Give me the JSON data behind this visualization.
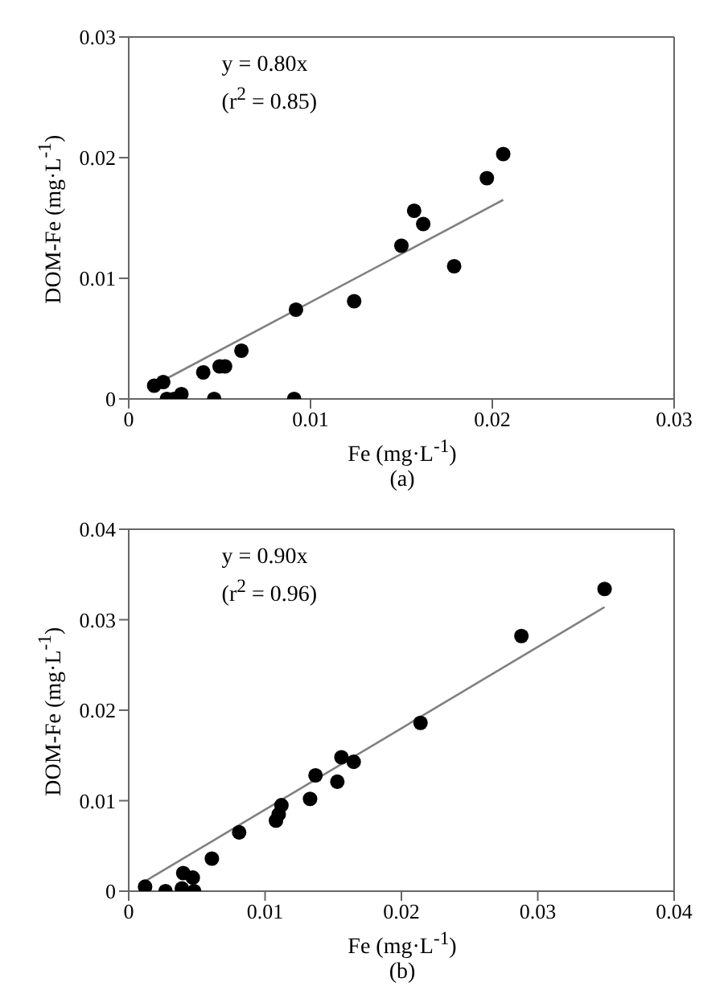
{
  "chart_data": [
    {
      "type": "scatter",
      "xlabel": "Fe (mg·L$^{-1}$)",
      "ylabel": "DOM-Fe (mg·L$^{-1}$)",
      "annotations": [
        "y = 0.80x",
        "(r$^{2}$ = 0.85)",
        "(a)"
      ],
      "xlim": [
        0,
        0.03
      ],
      "xticks": [
        0,
        0.01,
        0.02,
        0.03
      ],
      "ylim": [
        0,
        0.03
      ],
      "yticks": [
        0,
        0.01,
        0.02,
        0.03
      ],
      "marker": "circle",
      "series": [
        {
          "color": "#000000",
          "x": [
            0.0014,
            0.0019,
            0.0021,
            0.0025,
            0.0029,
            0.0041,
            0.0047,
            0.005,
            0.0053,
            0.0062,
            0.0091,
            0.0092,
            0.0124,
            0.015,
            0.0157,
            0.0162,
            0.0179,
            0.0197,
            0.0206
          ],
          "values": [
            0.0011,
            0.0014,
            0,
            0,
            0.0004,
            0.0022,
            0,
            0.0027,
            0.0027,
            0.004,
            0,
            0.0074,
            0.0081,
            0.0127,
            0.0156,
            0.0145,
            0.011,
            0.0183,
            0.0203
          ]
        },
        {
          "type": "line",
          "marker": "none",
          "color": "#808080",
          "line_style": "solid",
          "x": [
            0.0016,
            0.0206
          ],
          "values": [
            0.0013,
            0.0165
          ]
        }
      ]
    },
    {
      "type": "scatter",
      "xlabel": "Fe (mg·L$^{-1}$)",
      "ylabel": "DOM-Fe (mg·L$^{-1}$)",
      "annotations": [
        "y = 0.90x",
        "(r$^{2}$ = 0.96)",
        "(b)"
      ],
      "xlim": [
        0,
        0.04
      ],
      "xticks": [
        0,
        0.01,
        0.02,
        0.03,
        0.04
      ],
      "ylim": [
        0,
        0.04
      ],
      "yticks": [
        0,
        0.01,
        0.02,
        0.03,
        0.04
      ],
      "marker": "circle",
      "series": [
        {
          "color": "#000000",
          "x": [
            0.0012,
            0.0027,
            0.0039,
            0.004,
            0.0047,
            0.0048,
            0.0061,
            0.0081,
            0.0108,
            0.011,
            0.0112,
            0.0133,
            0.0137,
            0.0153,
            0.0156,
            0.0165,
            0.0214,
            0.0288,
            0.0349
          ],
          "values": [
            0.0005,
            0,
            0.0003,
            0.002,
            0.0015,
            0,
            0.0036,
            0.0065,
            0.0078,
            0.0085,
            0.0095,
            0.0102,
            0.0128,
            0.0121,
            0.0148,
            0.0143,
            0.0186,
            0.0282,
            0.0334
          ]
        },
        {
          "type": "line",
          "marker": "none",
          "color": "#808080",
          "line_style": "solid",
          "x": [
            0.0012,
            0.0349
          ],
          "values": [
            0.0011,
            0.0314
          ]
        }
      ]
    }
  ]
}
